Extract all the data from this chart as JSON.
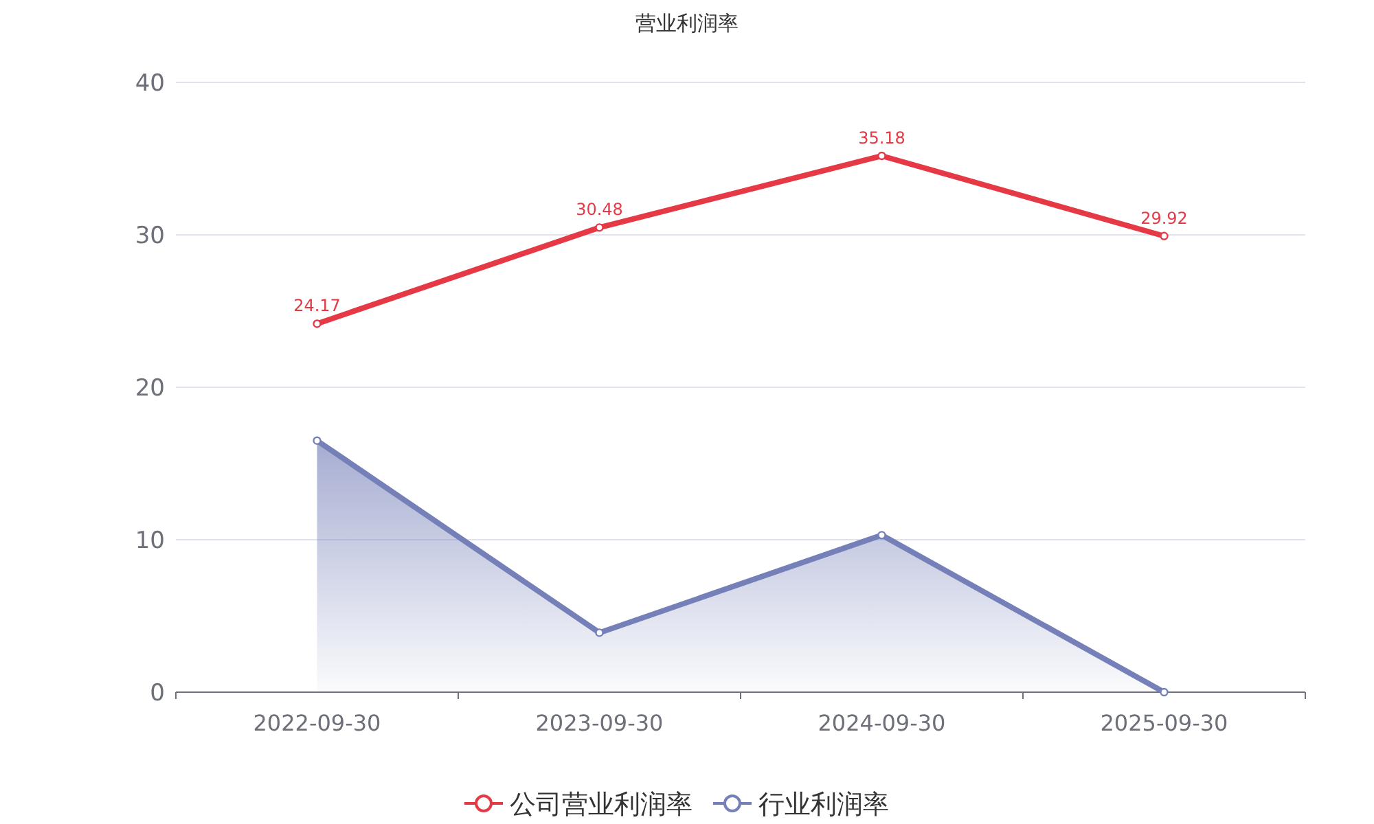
{
  "chart_data": {
    "type": "line",
    "title": "营业利润率",
    "categories": [
      "2022-09-30",
      "2023-09-30",
      "2024-09-30",
      "2025-09-30"
    ],
    "series": [
      {
        "name": "公司营业利润率",
        "color": "#e63946",
        "values": [
          24.17,
          30.48,
          35.18,
          29.92
        ],
        "value_labels": [
          "24.17",
          "30.48",
          "35.18",
          "29.92"
        ]
      },
      {
        "name": "行业利润率",
        "type": "area",
        "color": "#7580b8",
        "values": [
          16.5,
          3.9,
          10.3,
          0
        ]
      }
    ],
    "ylim": [
      0,
      40
    ],
    "yticks": [
      0,
      10,
      20,
      30,
      40
    ],
    "grid": "y",
    "legend": "bottom",
    "marker": "circle",
    "line_style": "solid"
  }
}
